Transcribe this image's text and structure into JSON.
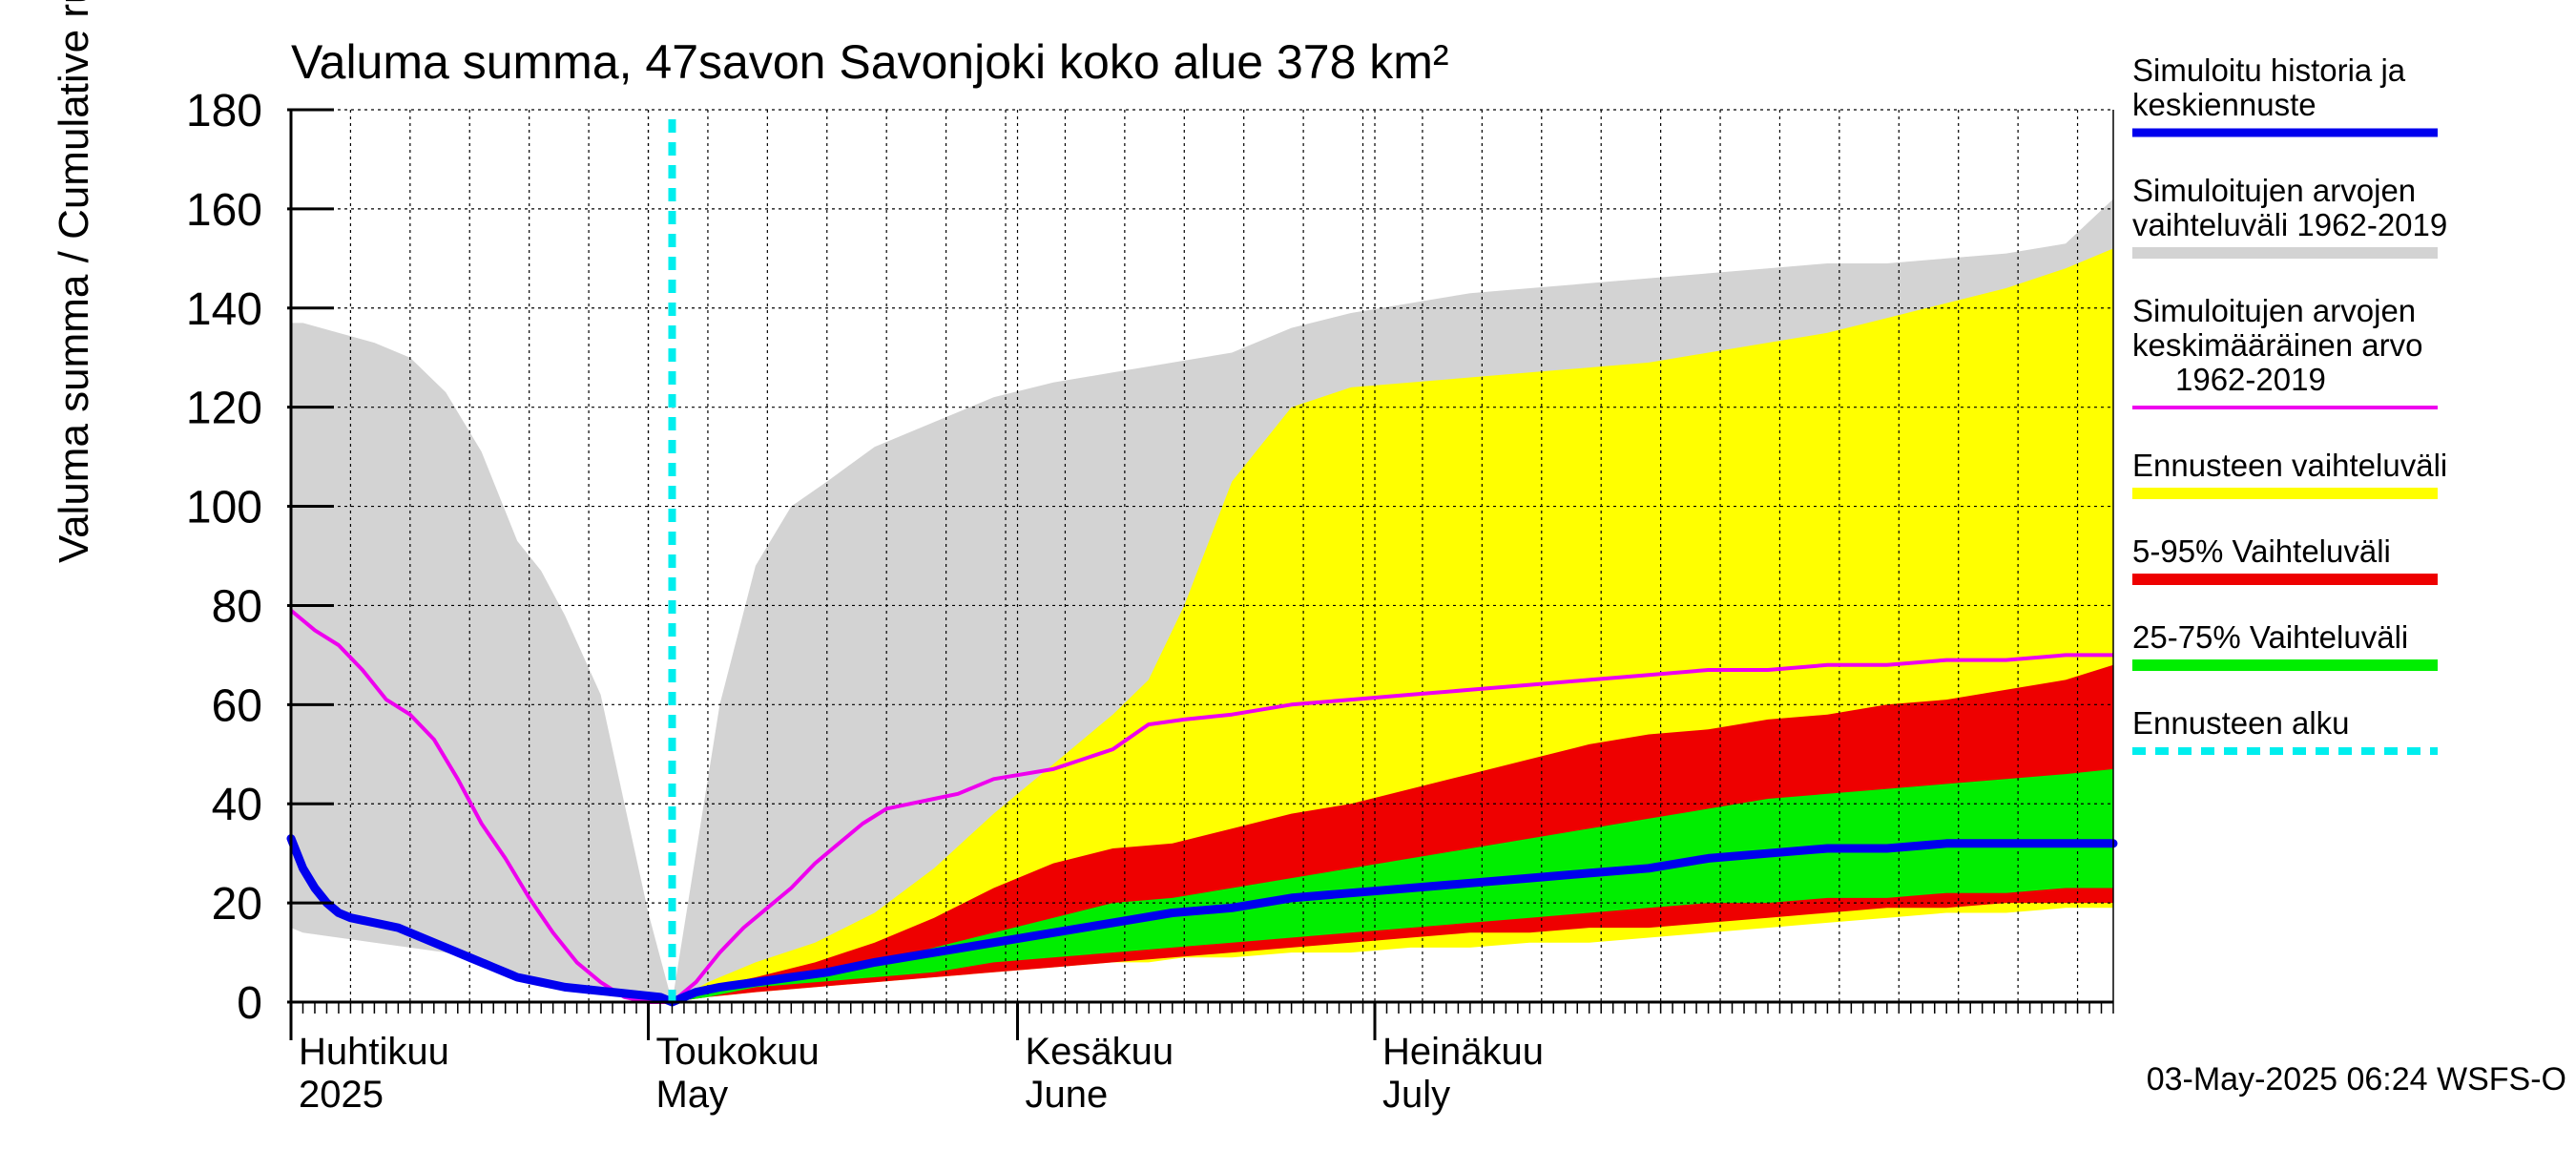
{
  "chart_data": {
    "type": "area",
    "title": "Valuma summa, 47savon Savonjoki koko alue 378 km²",
    "ylabel": "Valuma summa / Cumulative runoff    mm",
    "ylim": [
      0,
      180
    ],
    "yticks": [
      0,
      20,
      40,
      60,
      80,
      100,
      120,
      140,
      160,
      180
    ],
    "x_unit": "day of year",
    "xlim": [
      91,
      244
    ],
    "grid": true,
    "legend_position": "right",
    "month_labels": [
      {
        "x": 91,
        "line1": "Huhtikuu",
        "line2": "2025"
      },
      {
        "x": 121,
        "line1": "Toukokuu",
        "line2": "May"
      },
      {
        "x": 152,
        "line1": "Kesäkuu",
        "line2": "June"
      },
      {
        "x": 182,
        "line1": "Heinäkuu",
        "line2": "July"
      }
    ],
    "forecast_start": 123,
    "footer": "03-May-2025 06:24 WSFS-O",
    "colors": {
      "history": "#0000ee",
      "sim_range": "#d3d3d3",
      "sim_mean": "#ee00ee",
      "forecast_range": "#ffff00",
      "p5_95": "#ee0000",
      "p25_75": "#00ee00",
      "forecast_start": "#00eeee"
    },
    "legend": [
      {
        "key": "history",
        "lines": [
          "Simuloitu historia ja",
          "keskiennuste"
        ]
      },
      {
        "key": "sim_range",
        "lines": [
          "Simuloitujen arvojen",
          "vaihteluväli 1962-2019"
        ]
      },
      {
        "key": "sim_mean",
        "lines": [
          "Simuloitujen arvojen",
          "keskimääräinen arvo",
          "1962-2019"
        ]
      },
      {
        "key": "forecast_range",
        "lines": [
          "Ennusteen vaihteluväli"
        ]
      },
      {
        "key": "p5_95",
        "lines": [
          "5-95% Vaihteluväli"
        ]
      },
      {
        "key": "p25_75",
        "lines": [
          "25-75% Vaihteluväli"
        ]
      },
      {
        "key": "forecast_start",
        "lines": [
          "Ennusteen alku"
        ]
      }
    ],
    "sim_range": {
      "x": [
        91,
        92,
        95,
        98,
        101,
        104,
        107,
        110,
        112,
        114,
        117,
        119,
        121,
        123,
        125,
        127,
        130,
        133,
        136,
        140,
        145,
        150,
        155,
        160,
        165,
        170,
        175,
        180,
        185,
        190,
        195,
        200,
        205,
        210,
        215,
        220,
        225,
        230,
        235,
        240,
        244
      ],
      "upper": [
        137,
        137,
        135,
        133,
        130,
        123,
        111,
        93,
        87,
        78,
        62,
        40,
        18,
        0,
        30,
        60,
        88,
        100,
        105,
        112,
        117,
        122,
        125,
        127,
        129,
        131,
        136,
        139,
        141,
        143,
        144,
        145,
        146,
        147,
        148,
        149,
        149,
        150,
        151,
        153,
        162
      ],
      "lower": [
        15,
        14,
        13,
        12,
        11,
        10,
        8,
        6,
        4,
        3,
        2,
        1,
        1,
        0,
        2,
        3,
        4,
        5,
        6,
        7,
        8,
        9,
        10,
        11,
        12,
        13,
        14,
        15,
        16,
        17,
        18,
        18,
        19,
        20,
        21,
        21,
        22,
        22,
        23,
        23,
        24
      ]
    },
    "forecast_range": {
      "x": [
        123,
        126,
        130,
        135,
        140,
        145,
        150,
        155,
        160,
        163,
        166,
        170,
        175,
        180,
        185,
        190,
        195,
        200,
        205,
        210,
        215,
        220,
        225,
        230,
        235,
        240,
        244
      ],
      "upper": [
        0,
        4,
        8,
        12,
        18,
        27,
        38,
        48,
        58,
        65,
        80,
        105,
        120,
        124,
        125,
        126,
        127,
        128,
        129,
        131,
        133,
        135,
        138,
        141,
        144,
        148,
        152
      ],
      "lower": [
        0,
        1,
        2,
        3,
        4,
        5,
        6,
        7,
        8,
        8,
        9,
        9,
        10,
        10,
        11,
        11,
        12,
        12,
        13,
        14,
        15,
        16,
        17,
        18,
        18,
        19,
        19
      ]
    },
    "p5_95": {
      "x": [
        123,
        126,
        130,
        135,
        140,
        145,
        150,
        155,
        160,
        165,
        170,
        175,
        180,
        185,
        190,
        195,
        200,
        205,
        210,
        215,
        220,
        225,
        230,
        235,
        240,
        244
      ],
      "upper": [
        0,
        3,
        5,
        8,
        12,
        17,
        23,
        28,
        31,
        32,
        35,
        38,
        40,
        43,
        46,
        49,
        52,
        54,
        55,
        57,
        58,
        60,
        61,
        63,
        65,
        68
      ],
      "lower": [
        0,
        1,
        2,
        3,
        4,
        5,
        6,
        7,
        8,
        9,
        10,
        11,
        12,
        13,
        14,
        14,
        15,
        15,
        16,
        17,
        18,
        19,
        19,
        20,
        20,
        20
      ]
    },
    "p25_75": {
      "x": [
        123,
        126,
        130,
        135,
        140,
        145,
        150,
        155,
        160,
        165,
        170,
        175,
        180,
        185,
        190,
        195,
        200,
        205,
        210,
        215,
        220,
        225,
        230,
        235,
        240,
        244
      ],
      "upper": [
        0,
        2,
        4,
        6,
        8,
        11,
        14,
        17,
        20,
        21,
        23,
        25,
        27,
        29,
        31,
        33,
        35,
        37,
        39,
        41,
        42,
        43,
        44,
        45,
        46,
        47
      ],
      "lower": [
        0,
        1,
        3,
        4,
        5,
        6,
        8,
        9,
        10,
        11,
        12,
        13,
        14,
        15,
        16,
        17,
        18,
        19,
        20,
        20,
        21,
        21,
        22,
        22,
        23,
        23
      ]
    },
    "sim_mean": {
      "x": [
        91,
        93,
        95,
        97,
        99,
        101,
        103,
        105,
        107,
        109,
        111,
        113,
        115,
        117,
        119,
        121,
        123,
        125,
        127,
        129,
        131,
        133,
        135,
        137,
        139,
        141,
        143,
        145,
        147,
        150,
        155,
        160,
        163,
        166,
        170,
        175,
        180,
        185,
        190,
        195,
        200,
        205,
        210,
        215,
        220,
        225,
        230,
        235,
        240,
        244
      ],
      "values": [
        79,
        75,
        72,
        67,
        61,
        58,
        53,
        45,
        36,
        29,
        21,
        14,
        8,
        4,
        1,
        0,
        0,
        4,
        10,
        15,
        19,
        23,
        28,
        32,
        36,
        39,
        40,
        41,
        42,
        45,
        47,
        51,
        56,
        57,
        58,
        60,
        61,
        62,
        63,
        64,
        65,
        66,
        67,
        67,
        68,
        68,
        69,
        69,
        70,
        70
      ]
    },
    "history": {
      "x": [
        91,
        92,
        93,
        94,
        95,
        96,
        98,
        100,
        102,
        104,
        106,
        108,
        110,
        112,
        114,
        116,
        118,
        120,
        122,
        123,
        125,
        127,
        130,
        133,
        136,
        140,
        145,
        150,
        155,
        160,
        165,
        170,
        175,
        180,
        185,
        190,
        195,
        200,
        205,
        210,
        215,
        220,
        225,
        230,
        235,
        240,
        244
      ],
      "values": [
        33,
        27,
        23,
        20,
        18,
        17,
        16,
        15,
        13,
        11,
        9,
        7,
        5,
        4,
        3,
        2.5,
        2,
        1.5,
        1,
        0,
        2,
        3,
        4,
        5,
        6,
        8,
        10,
        12,
        14,
        16,
        18,
        19,
        21,
        22,
        23,
        24,
        25,
        26,
        27,
        29,
        30,
        31,
        31,
        32,
        32,
        32,
        32
      ]
    }
  }
}
